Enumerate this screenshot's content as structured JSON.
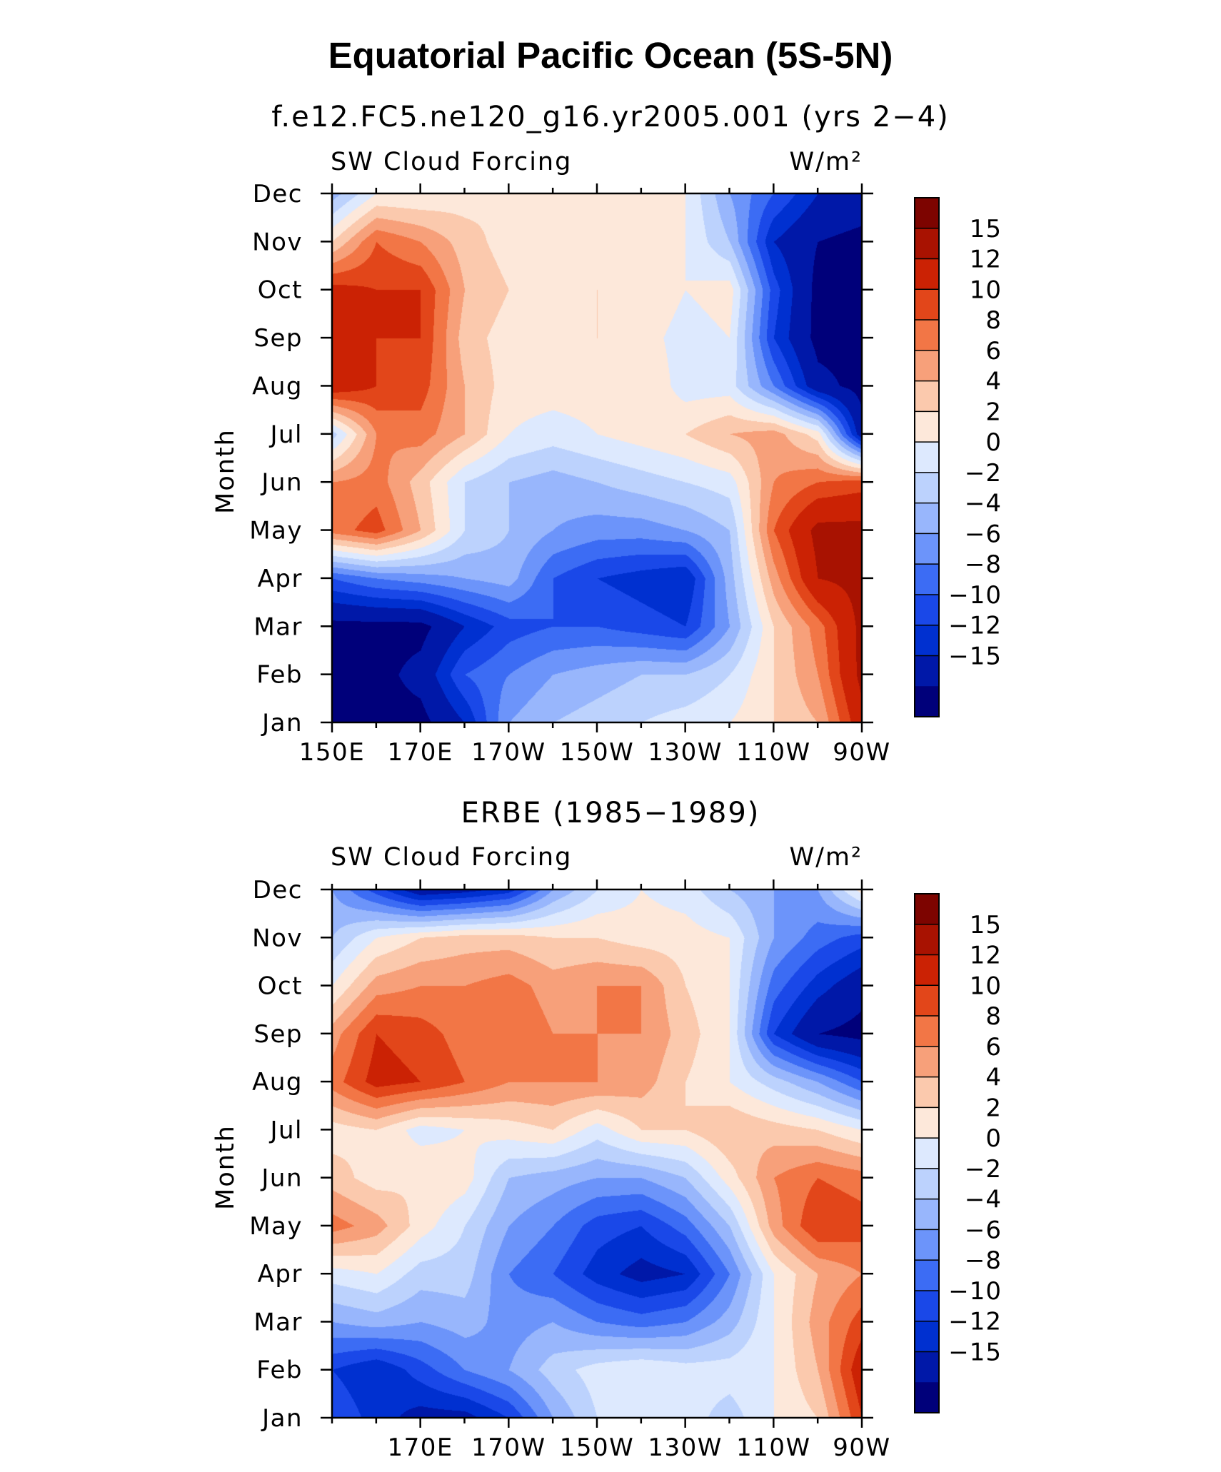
{
  "title": "Equatorial Pacific Ocean (5S-5N)",
  "chart_data": [
    {
      "type": "heatmap",
      "title": "f.e12.FC5.ne120_g16.yr2005.001 (yrs 2−4)",
      "left_label": "SW Cloud Forcing",
      "right_label": "W/m²",
      "ylabel": "Month",
      "x_ticks": [
        "150E",
        "170E",
        "170W",
        "150W",
        "130W",
        "110W",
        "90W"
      ],
      "x_tick_lons": [
        150,
        170,
        190,
        210,
        230,
        250,
        270
      ],
      "y_ticks": [
        "Jan",
        "Feb",
        "Mar",
        "Apr",
        "May",
        "Jun",
        "Jul",
        "Aug",
        "Sep",
        "Oct",
        "Nov",
        "Dec"
      ],
      "xlim": [
        150,
        270
      ],
      "lons": [
        150,
        160,
        170,
        180,
        190,
        200,
        210,
        220,
        230,
        240,
        250,
        260,
        270
      ],
      "values": [
        [
          -16,
          -16,
          -16,
          -12,
          -4,
          -2,
          -1,
          0,
          1,
          2,
          4,
          6,
          14
        ],
        [
          -16,
          -16,
          -14,
          -8,
          -6,
          -4,
          -3,
          -2,
          -2,
          0,
          4,
          8,
          16
        ],
        [
          -16,
          -16,
          -16,
          -12,
          -9,
          -8,
          -8,
          -9,
          -10,
          -4,
          4,
          9,
          16
        ],
        [
          -8,
          -6,
          -5,
          -4,
          -3,
          -8,
          -10,
          -11,
          -12,
          -3,
          7,
          15,
          16
        ],
        [
          9,
          11,
          6,
          0,
          -2,
          -4,
          -5,
          -5,
          -4,
          -2,
          10,
          16,
          16
        ],
        [
          8,
          9,
          5,
          0,
          -2,
          -3,
          -2,
          -1,
          0,
          1,
          8,
          10,
          11
        ],
        [
          -1,
          8,
          9,
          6,
          2,
          1,
          2,
          3,
          4,
          6,
          7,
          3,
          -14
        ],
        [
          14,
          12,
          11,
          6,
          3,
          3,
          3,
          4,
          1,
          1,
          -6,
          -14,
          -16
        ],
        [
          15,
          12,
          12,
          5,
          3,
          3,
          4,
          3,
          1,
          2,
          -10,
          -16,
          -16
        ],
        [
          13,
          12,
          12,
          6,
          4,
          4,
          4,
          4,
          2,
          3,
          -9,
          -16,
          -16
        ],
        [
          4,
          10,
          8,
          5,
          3,
          3,
          3,
          3,
          2,
          -2,
          -12,
          -15,
          -16
        ],
        [
          -3,
          2,
          2,
          3,
          4,
          4,
          4,
          3,
          2,
          -4,
          -8,
          -12,
          -13
        ]
      ]
    },
    {
      "type": "heatmap",
      "title": "ERBE (1985−1989)",
      "left_label": "SW Cloud Forcing",
      "right_label": "W/m²",
      "ylabel": "Month",
      "x_ticks": [
        "170E",
        "170W",
        "150W",
        "130W",
        "110W",
        "90W"
      ],
      "x_tick_lons": [
        170,
        190,
        210,
        230,
        250,
        270
      ],
      "y_ticks": [
        "Jan",
        "Feb",
        "Mar",
        "Apr",
        "May",
        "Jun",
        "Jul",
        "Aug",
        "Sep",
        "Oct",
        "Nov",
        "Dec"
      ],
      "xlim": [
        150,
        270
      ],
      "lons": [
        150,
        160,
        170,
        180,
        190,
        200,
        210,
        220,
        230,
        240,
        250,
        260,
        270
      ],
      "values": [
        [
          -8,
          -11,
          -13,
          -13,
          -10,
          -4,
          0,
          2,
          1,
          -1,
          2,
          4,
          12
        ],
        [
          -10,
          -12,
          -9,
          -6,
          -4,
          -1,
          1,
          2,
          1,
          1,
          2,
          6,
          14
        ],
        [
          -4,
          -3,
          -4,
          -3,
          -5,
          -4,
          -6,
          -7,
          -6,
          -3,
          2,
          7,
          11
        ],
        [
          1,
          2,
          -1,
          -1,
          -6,
          -8,
          -11,
          -13,
          -12,
          -6,
          2,
          6,
          8
        ],
        [
          9,
          7,
          3,
          0,
          -4,
          -6,
          -9,
          -10,
          -7,
          -2,
          7,
          12,
          11
        ],
        [
          5,
          3,
          4,
          3,
          -2,
          -3,
          -4,
          -4,
          -2,
          3,
          8,
          10,
          9
        ],
        [
          3,
          4,
          1,
          2,
          3,
          4,
          1,
          4,
          4,
          6,
          5,
          4,
          2
        ],
        [
          9,
          13,
          12,
          10,
          8,
          8,
          8,
          7,
          4,
          2,
          -1,
          -4,
          -8
        ],
        [
          7,
          12,
          11,
          9,
          10,
          8,
          8,
          8,
          5,
          2,
          -10,
          -15,
          -16
        ],
        [
          2,
          7,
          8,
          8,
          9,
          7,
          8,
          8,
          4,
          2,
          -7,
          -11,
          -14
        ],
        [
          -2,
          2,
          4,
          5,
          5,
          4,
          4,
          3,
          3,
          2,
          -4,
          -7,
          -9
        ],
        [
          -4,
          -9,
          -14,
          -13,
          -11,
          -4,
          0,
          2,
          1,
          -2,
          -4,
          -4,
          3
        ]
      ]
    }
  ],
  "colorbar": {
    "labels": [
      "15",
      "12",
      "10",
      "8",
      "6",
      "4",
      "2",
      "0",
      "−2",
      "−4",
      "−6",
      "−8",
      "−10",
      "−12",
      "−15"
    ],
    "levels": [
      -15,
      -12,
      -10,
      -8,
      -6,
      -4,
      -2,
      0,
      2,
      4,
      6,
      8,
      10,
      12,
      15
    ],
    "colors": [
      "#00007a",
      "#0018a8",
      "#0030d0",
      "#1a48e8",
      "#3c6cf4",
      "#6c94fa",
      "#98b6fc",
      "#bcd2fd",
      "#dde9fe",
      "#fde8da",
      "#fbc9ad",
      "#f7a07a",
      "#f27646",
      "#e2461a",
      "#cb2204",
      "#a81201",
      "#7d0400"
    ]
  }
}
